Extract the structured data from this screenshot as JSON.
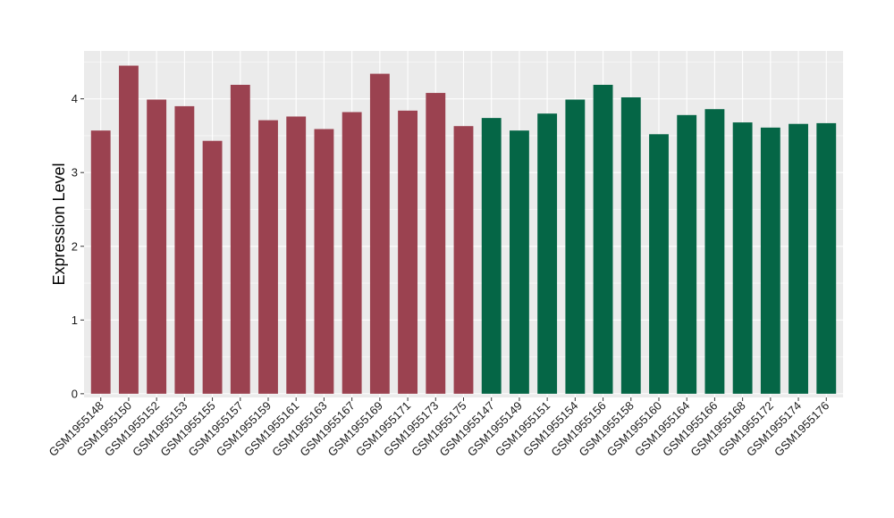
{
  "chart_data": {
    "type": "bar",
    "title": "",
    "xlabel": "",
    "ylabel": "Expression Level",
    "ylim": [
      -0.05,
      4.65
    ],
    "yticks": [
      0,
      1,
      2,
      3,
      4
    ],
    "grid": true,
    "legend": "none",
    "categories": [
      "GSM1955148",
      "GSM1955150",
      "GSM1955152",
      "GSM1955153",
      "GSM1955155",
      "GSM1955157",
      "GSM1955159",
      "GSM1955161",
      "GSM1955163",
      "GSM1955167",
      "GSM1955169",
      "GSM1955171",
      "GSM1955173",
      "GSM1955175",
      "GSM1955147",
      "GSM1955149",
      "GSM1955151",
      "GSM1955154",
      "GSM1955156",
      "GSM1955158",
      "GSM1955160",
      "GSM1955164",
      "GSM1955166",
      "GSM1955168",
      "GSM1955172",
      "GSM1955174",
      "GSM1955176"
    ],
    "values": [
      3.57,
      4.45,
      3.99,
      3.9,
      3.43,
      4.19,
      3.71,
      3.76,
      3.59,
      3.82,
      4.34,
      3.84,
      4.08,
      3.63,
      3.74,
      3.57,
      3.8,
      3.99,
      4.19,
      4.02,
      3.52,
      3.78,
      3.86,
      3.68,
      3.61,
      3.66,
      3.67
    ],
    "groups": [
      "A",
      "A",
      "A",
      "A",
      "A",
      "A",
      "A",
      "A",
      "A",
      "A",
      "A",
      "A",
      "A",
      "A",
      "B",
      "B",
      "B",
      "B",
      "B",
      "B",
      "B",
      "B",
      "B",
      "B",
      "B",
      "B",
      "B"
    ],
    "colors": {
      "A": "#9b4250",
      "B": "#056646"
    }
  }
}
